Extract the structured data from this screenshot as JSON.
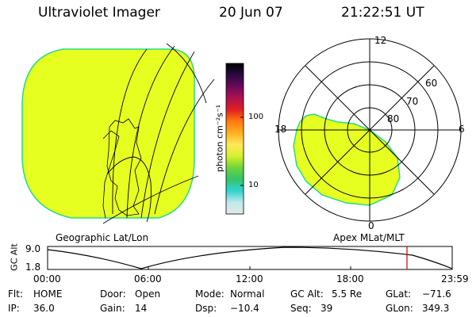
{
  "header": {
    "instrument": "Ultraviolet Imager",
    "date": "20 Jun 07",
    "time": "21:22:51 UT"
  },
  "colors": {
    "image_fill": "#e6ff20",
    "image_edge": "#22dd88",
    "coast_line": "#000000"
  },
  "colorbar": {
    "unit_label": "photon cm⁻²s⁻¹",
    "ticks": [
      "100",
      "10"
    ],
    "stops": [
      "#e8e8e8",
      "#bfe9ea",
      "#2fd3cf",
      "#33c46a",
      "#6fd43a",
      "#d6f02e",
      "#ffe85a",
      "#ffb020",
      "#ff7a10",
      "#e02020",
      "#b01050",
      "#6a0a5a",
      "#2a0a40",
      "#000000"
    ]
  },
  "left_panel": {
    "caption": "Geographic Lat/Lon"
  },
  "right_panel": {
    "caption": "Apex MLat/MLT",
    "mlt_labels": {
      "top": "12",
      "left": "18",
      "right": "6",
      "bottom": "0"
    },
    "lat_labels": [
      "60",
      "70",
      "80"
    ]
  },
  "altitude_plot": {
    "ylabel": "GC Alt",
    "y_max": "9.0",
    "y_min": "1.8",
    "x_ticks": [
      "00:00",
      "06:00",
      "12:00",
      "18:00",
      "23:59"
    ],
    "marker_color": "#cc0000"
  },
  "info": {
    "filter_label": "Flt:",
    "filter_value": "HOME",
    "door_label": "Door:",
    "door_value": "Open",
    "mode_label": "Mode:",
    "mode_value": "Normal",
    "gcalt_label": "GC Alt:",
    "gcalt_value": "5.5 Re",
    "glat_label": "GLat:",
    "glat_value": "−71.6",
    "ip_label": "IP:",
    "ip_value": "36.0",
    "gain_label": "Gain:",
    "gain_value": "14",
    "dsp_label": "Dsp:",
    "dsp_value": "−10.4",
    "seq_label": "Seq:",
    "seq_value": "39",
    "glon_label": "GLon:",
    "glon_value": "349.3"
  }
}
